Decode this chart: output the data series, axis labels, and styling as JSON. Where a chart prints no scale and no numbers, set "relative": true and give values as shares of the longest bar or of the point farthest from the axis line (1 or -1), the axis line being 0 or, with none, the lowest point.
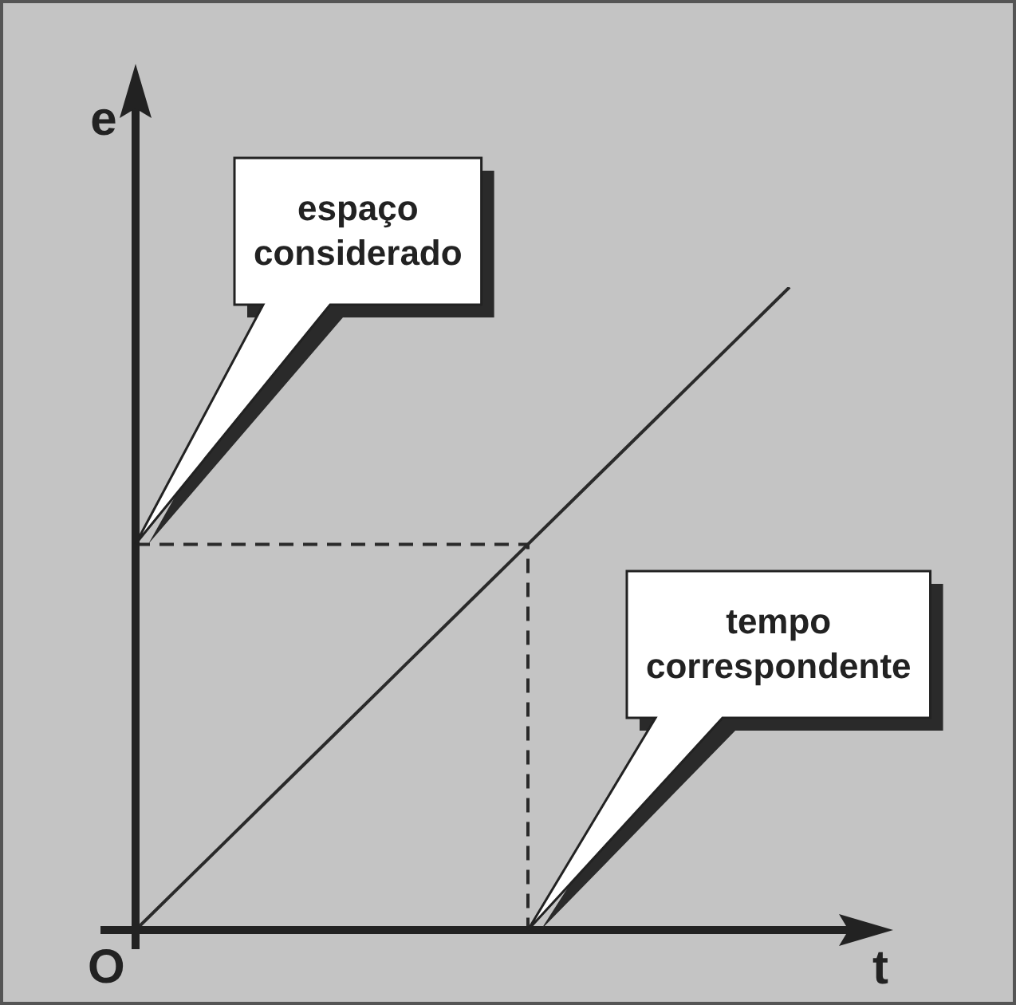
{
  "chart_data": {
    "type": "line",
    "relative": true,
    "xlabel": "t",
    "ylabel": "e",
    "tick_labels": false,
    "grid": false,
    "legend": false,
    "marker": "none",
    "categories": [
      null,
      null,
      null,
      null,
      null,
      null,
      null,
      null,
      null,
      null,
      null
    ],
    "series": [
      {
        "color": "#2a2a2a",
        "values": [
          0,
          0.1,
          0.2,
          0.3,
          0.4,
          0.5,
          0.6,
          0.7,
          0.8,
          0.9,
          1
        ],
        "line_style": "solid"
      }
    ],
    "ref_lines": [
      {
        "axis": "y",
        "value": 0.6,
        "line_style": "dashed",
        "color": "#2a2a2a"
      }
    ],
    "annotations": [
      "O",
      "espaço\nconsiderado",
      "tempo\ncorrespondente"
    ]
  }
}
